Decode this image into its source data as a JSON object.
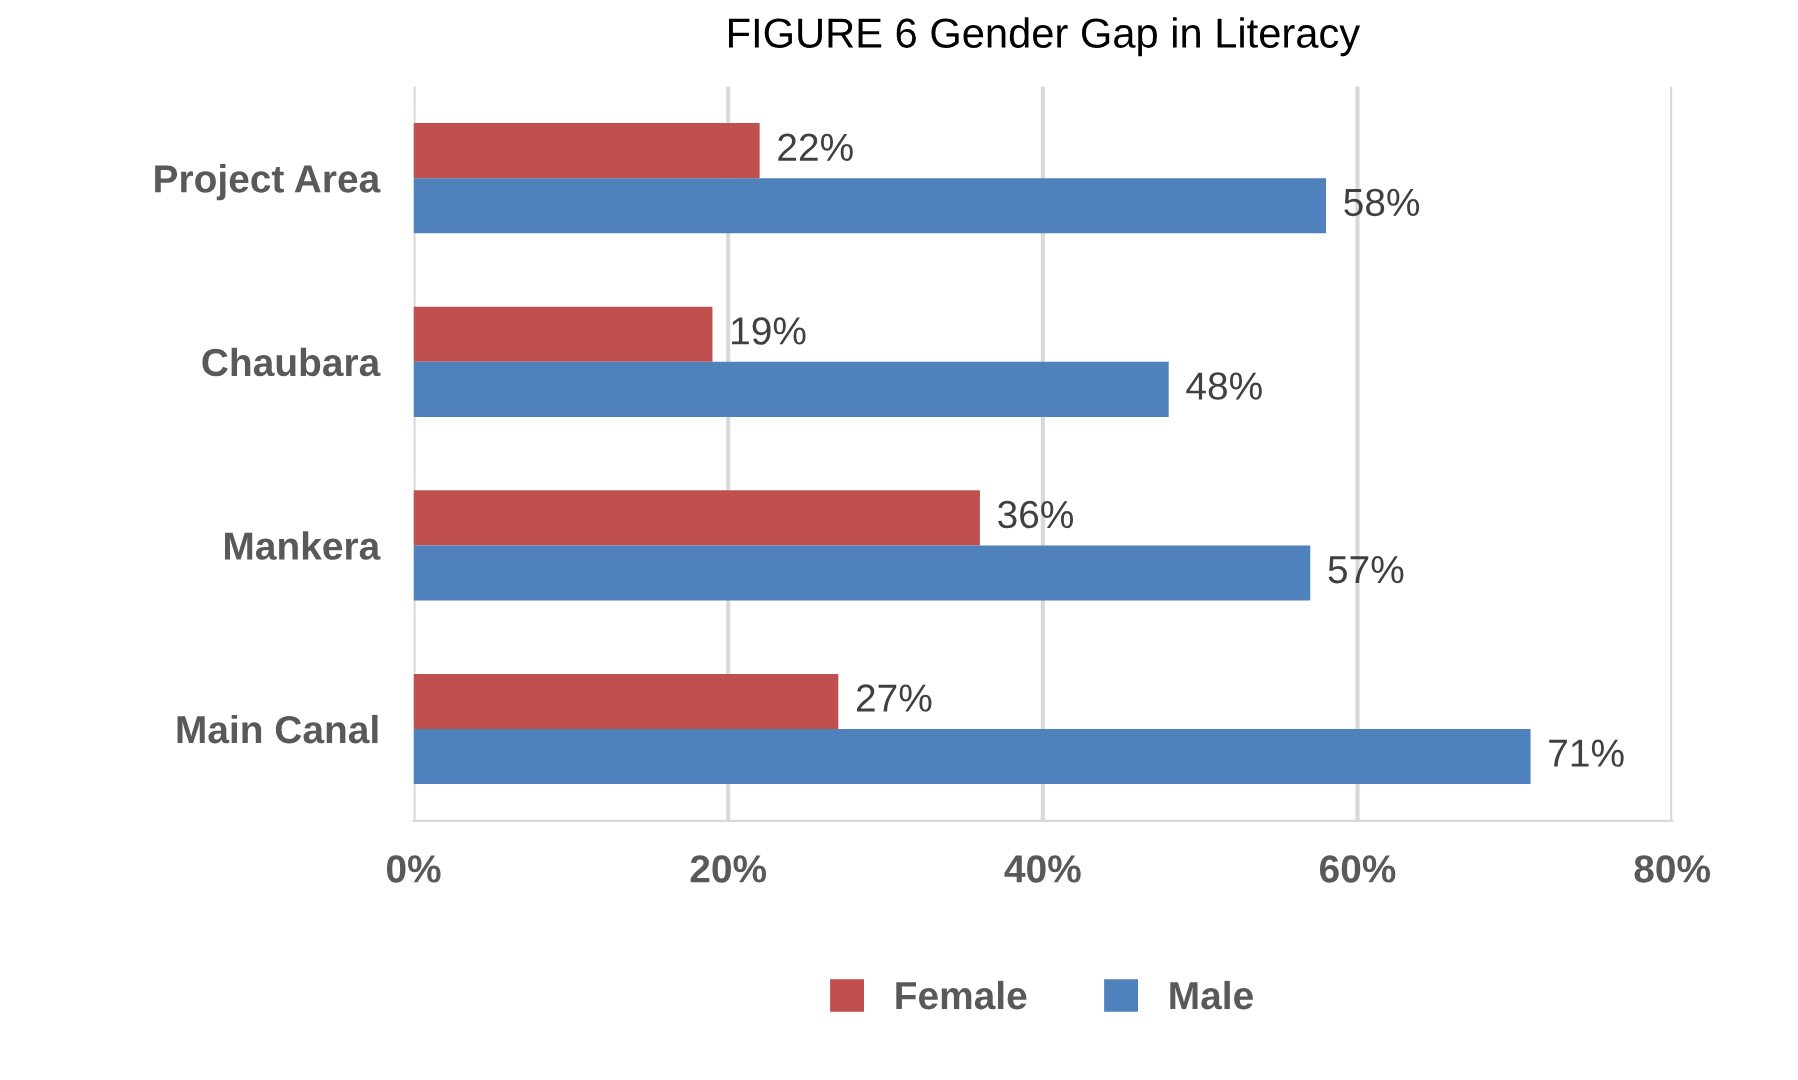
{
  "chart_data": {
    "type": "bar",
    "orientation": "horizontal",
    "title": "FIGURE 6 Gender Gap in Literacy",
    "categories": [
      "Project Area",
      "Chaubara",
      "Mankera",
      "Main Canal"
    ],
    "series": [
      {
        "name": "Female",
        "color": "#c0504d",
        "values": [
          22,
          19,
          36,
          27
        ],
        "value_labels": [
          "22%",
          "19%",
          "36%",
          "27%"
        ]
      },
      {
        "name": "Male",
        "color": "#4f81bd",
        "values": [
          58,
          48,
          57,
          71
        ],
        "value_labels": [
          "58%",
          "48%",
          "57%",
          "71%"
        ]
      }
    ],
    "xlim": [
      0,
      80
    ],
    "xticks": [
      {
        "value": 0,
        "label": "0%"
      },
      {
        "value": 20,
        "label": "20%"
      },
      {
        "value": 40,
        "label": "40%"
      },
      {
        "value": 60,
        "label": "60%"
      },
      {
        "value": 80,
        "label": "80%"
      }
    ],
    "grid": "x",
    "legend": "bottom"
  }
}
